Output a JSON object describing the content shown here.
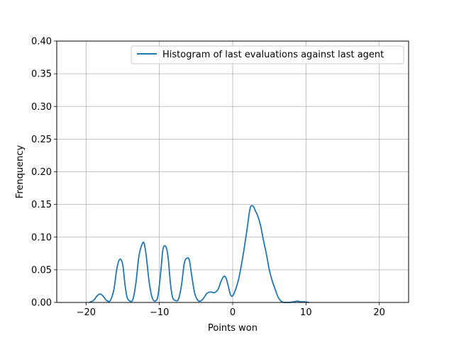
{
  "chart_data": {
    "type": "line",
    "xlabel": "Points won",
    "ylabel": "Frenquency",
    "xlim": [
      -24,
      24
    ],
    "ylim": [
      0,
      0.4
    ],
    "xticks": [
      -20,
      -10,
      0,
      10,
      20
    ],
    "xtick_labels": [
      "−20",
      "−10",
      "0",
      "10",
      "20"
    ],
    "yticks": [
      0.0,
      0.05,
      0.1,
      0.15,
      0.2,
      0.25,
      0.3,
      0.35,
      0.4
    ],
    "ytick_labels": [
      "0.00",
      "0.05",
      "0.10",
      "0.15",
      "0.20",
      "0.25",
      "0.30",
      "0.35",
      "0.40"
    ],
    "grid": true,
    "legend_position": "top-right",
    "series": [
      {
        "name": "Histogram of last evaluations against last agent",
        "color": "#1f77b4",
        "x": [
          -19.6,
          -19.0,
          -18.5,
          -18.1,
          -17.7,
          -17.2,
          -16.7,
          -16.2,
          -15.8,
          -15.4,
          -15.0,
          -14.7,
          -14.4,
          -14.0,
          -13.6,
          -13.2,
          -12.8,
          -12.4,
          -12.1,
          -11.8,
          -11.4,
          -11.0,
          -10.6,
          -10.2,
          -9.8,
          -9.5,
          -9.1,
          -8.8,
          -8.5,
          -8.2,
          -7.8,
          -7.4,
          -7.0,
          -6.6,
          -6.2,
          -5.9,
          -5.6,
          -5.2,
          -4.8,
          -4.4,
          -4.0,
          -3.5,
          -3.0,
          -2.5,
          -2.0,
          -1.6,
          -1.2,
          -0.9,
          -0.6,
          -0.3,
          0.0,
          0.4,
          0.8,
          1.2,
          1.6,
          2.0,
          2.4,
          2.8,
          3.1,
          3.4,
          3.8,
          4.2,
          4.6,
          5.0,
          5.4,
          5.8,
          6.2,
          6.6,
          7.0,
          7.4,
          7.8,
          8.3,
          8.8,
          9.3,
          9.8,
          10.4
        ],
        "y": [
          0.0,
          0.003,
          0.01,
          0.013,
          0.01,
          0.003,
          0.003,
          0.02,
          0.052,
          0.066,
          0.058,
          0.028,
          0.008,
          0.002,
          0.005,
          0.03,
          0.07,
          0.088,
          0.091,
          0.072,
          0.032,
          0.008,
          0.002,
          0.01,
          0.048,
          0.082,
          0.085,
          0.068,
          0.03,
          0.008,
          0.003,
          0.005,
          0.025,
          0.06,
          0.068,
          0.064,
          0.042,
          0.015,
          0.004,
          0.002,
          0.006,
          0.014,
          0.016,
          0.015,
          0.02,
          0.032,
          0.04,
          0.037,
          0.025,
          0.012,
          0.01,
          0.02,
          0.035,
          0.058,
          0.085,
          0.115,
          0.145,
          0.147,
          0.14,
          0.133,
          0.118,
          0.095,
          0.074,
          0.05,
          0.033,
          0.02,
          0.008,
          0.002,
          0.0,
          0.0,
          0.0,
          0.001,
          0.002,
          0.001,
          0.001,
          0.0
        ]
      }
    ]
  }
}
